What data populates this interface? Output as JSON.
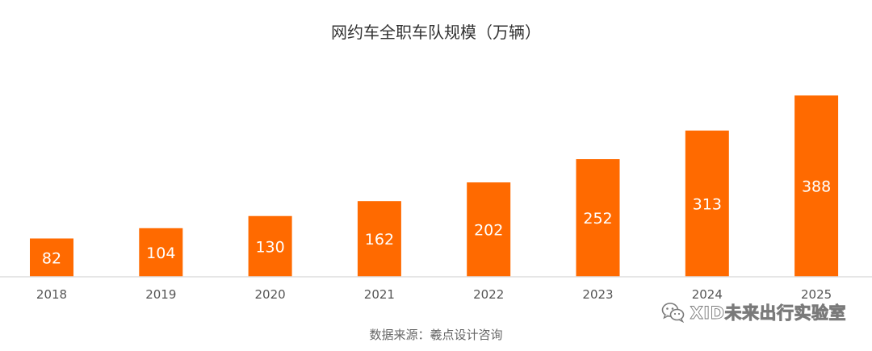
{
  "chart_data": {
    "type": "bar",
    "title": "网约车全职车队规模（万辆）",
    "categories": [
      "2018",
      "2019",
      "2020",
      "2021",
      "2022",
      "2023",
      "2024",
      "2025"
    ],
    "values": [
      82,
      104,
      130,
      162,
      202,
      252,
      313,
      388
    ],
    "xlabel": "",
    "ylabel": "",
    "ylim": [
      0,
      400
    ],
    "grid": false,
    "data_labels": "inside-bar",
    "colors": {
      "bar": "#ff6a00",
      "bar_label": "#ffffff",
      "tick_label": "#555555",
      "baseline": "#dddddd"
    }
  },
  "source": "数据来源：羲点设计咨询",
  "watermark": {
    "text": "XID未来出行实验室",
    "icon": "wechat-icon"
  }
}
